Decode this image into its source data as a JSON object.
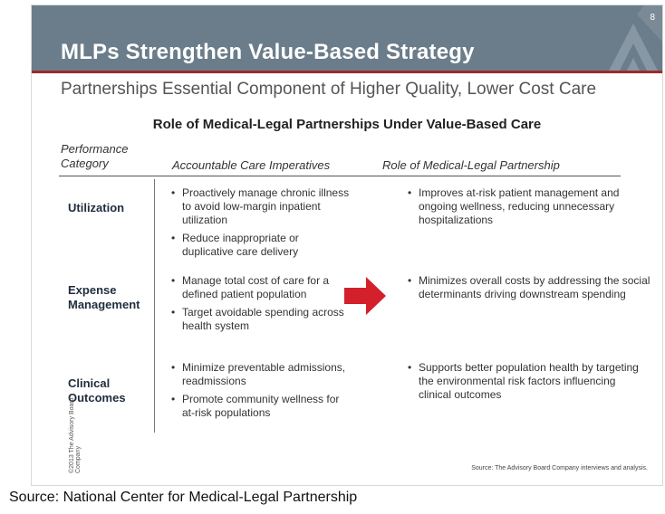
{
  "slide": {
    "page_number": "8",
    "title": "MLPs Strengthen Value-Based Strategy",
    "subtitle": "Partnerships Essential Component of Higher Quality, Lower Cost Care",
    "table_title": "Role of Medical-Legal Partnerships Under Value-Based Care",
    "columns": {
      "category": "Performance Category",
      "imperatives": "Accountable Care Imperatives",
      "role": "Role of Medical-Legal Partnership"
    },
    "rows": [
      {
        "category": "Utilization",
        "imperatives": [
          "Proactively manage chronic illness to avoid low-margin inpatient utilization",
          "Reduce inappropriate or duplicative care delivery"
        ],
        "role": [
          "Improves at-risk patient management and ongoing wellness, reducing unnecessary hospitalizations"
        ]
      },
      {
        "category": "Expense Management",
        "imperatives": [
          "Manage total cost of care for a defined patient population",
          "Target avoidable spending across health system"
        ],
        "role": [
          "Minimizes overall costs by addressing the social determinants driving downstream spending"
        ]
      },
      {
        "category": "Clinical Outcomes",
        "imperatives": [
          "Minimize preventable admissions, readmissions",
          "Promote community wellness for at-risk populations"
        ],
        "role": [
          "Supports better population health by targeting the environmental risk factors influencing clinical outcomes"
        ]
      }
    ],
    "copyright": "©2013 The Advisory Board Company",
    "source_note": "Source: The Advisory Board Company interviews and analysis.",
    "colors": {
      "banner": "#6b7d8a",
      "accent_line": "#9e2a2b",
      "arrow": "#d4202a"
    },
    "icons": {
      "arrow": "right-arrow-icon",
      "logo": "advisory-board-logo-icon"
    }
  },
  "caption": "Source: National Center for Medical-Legal Partnership"
}
